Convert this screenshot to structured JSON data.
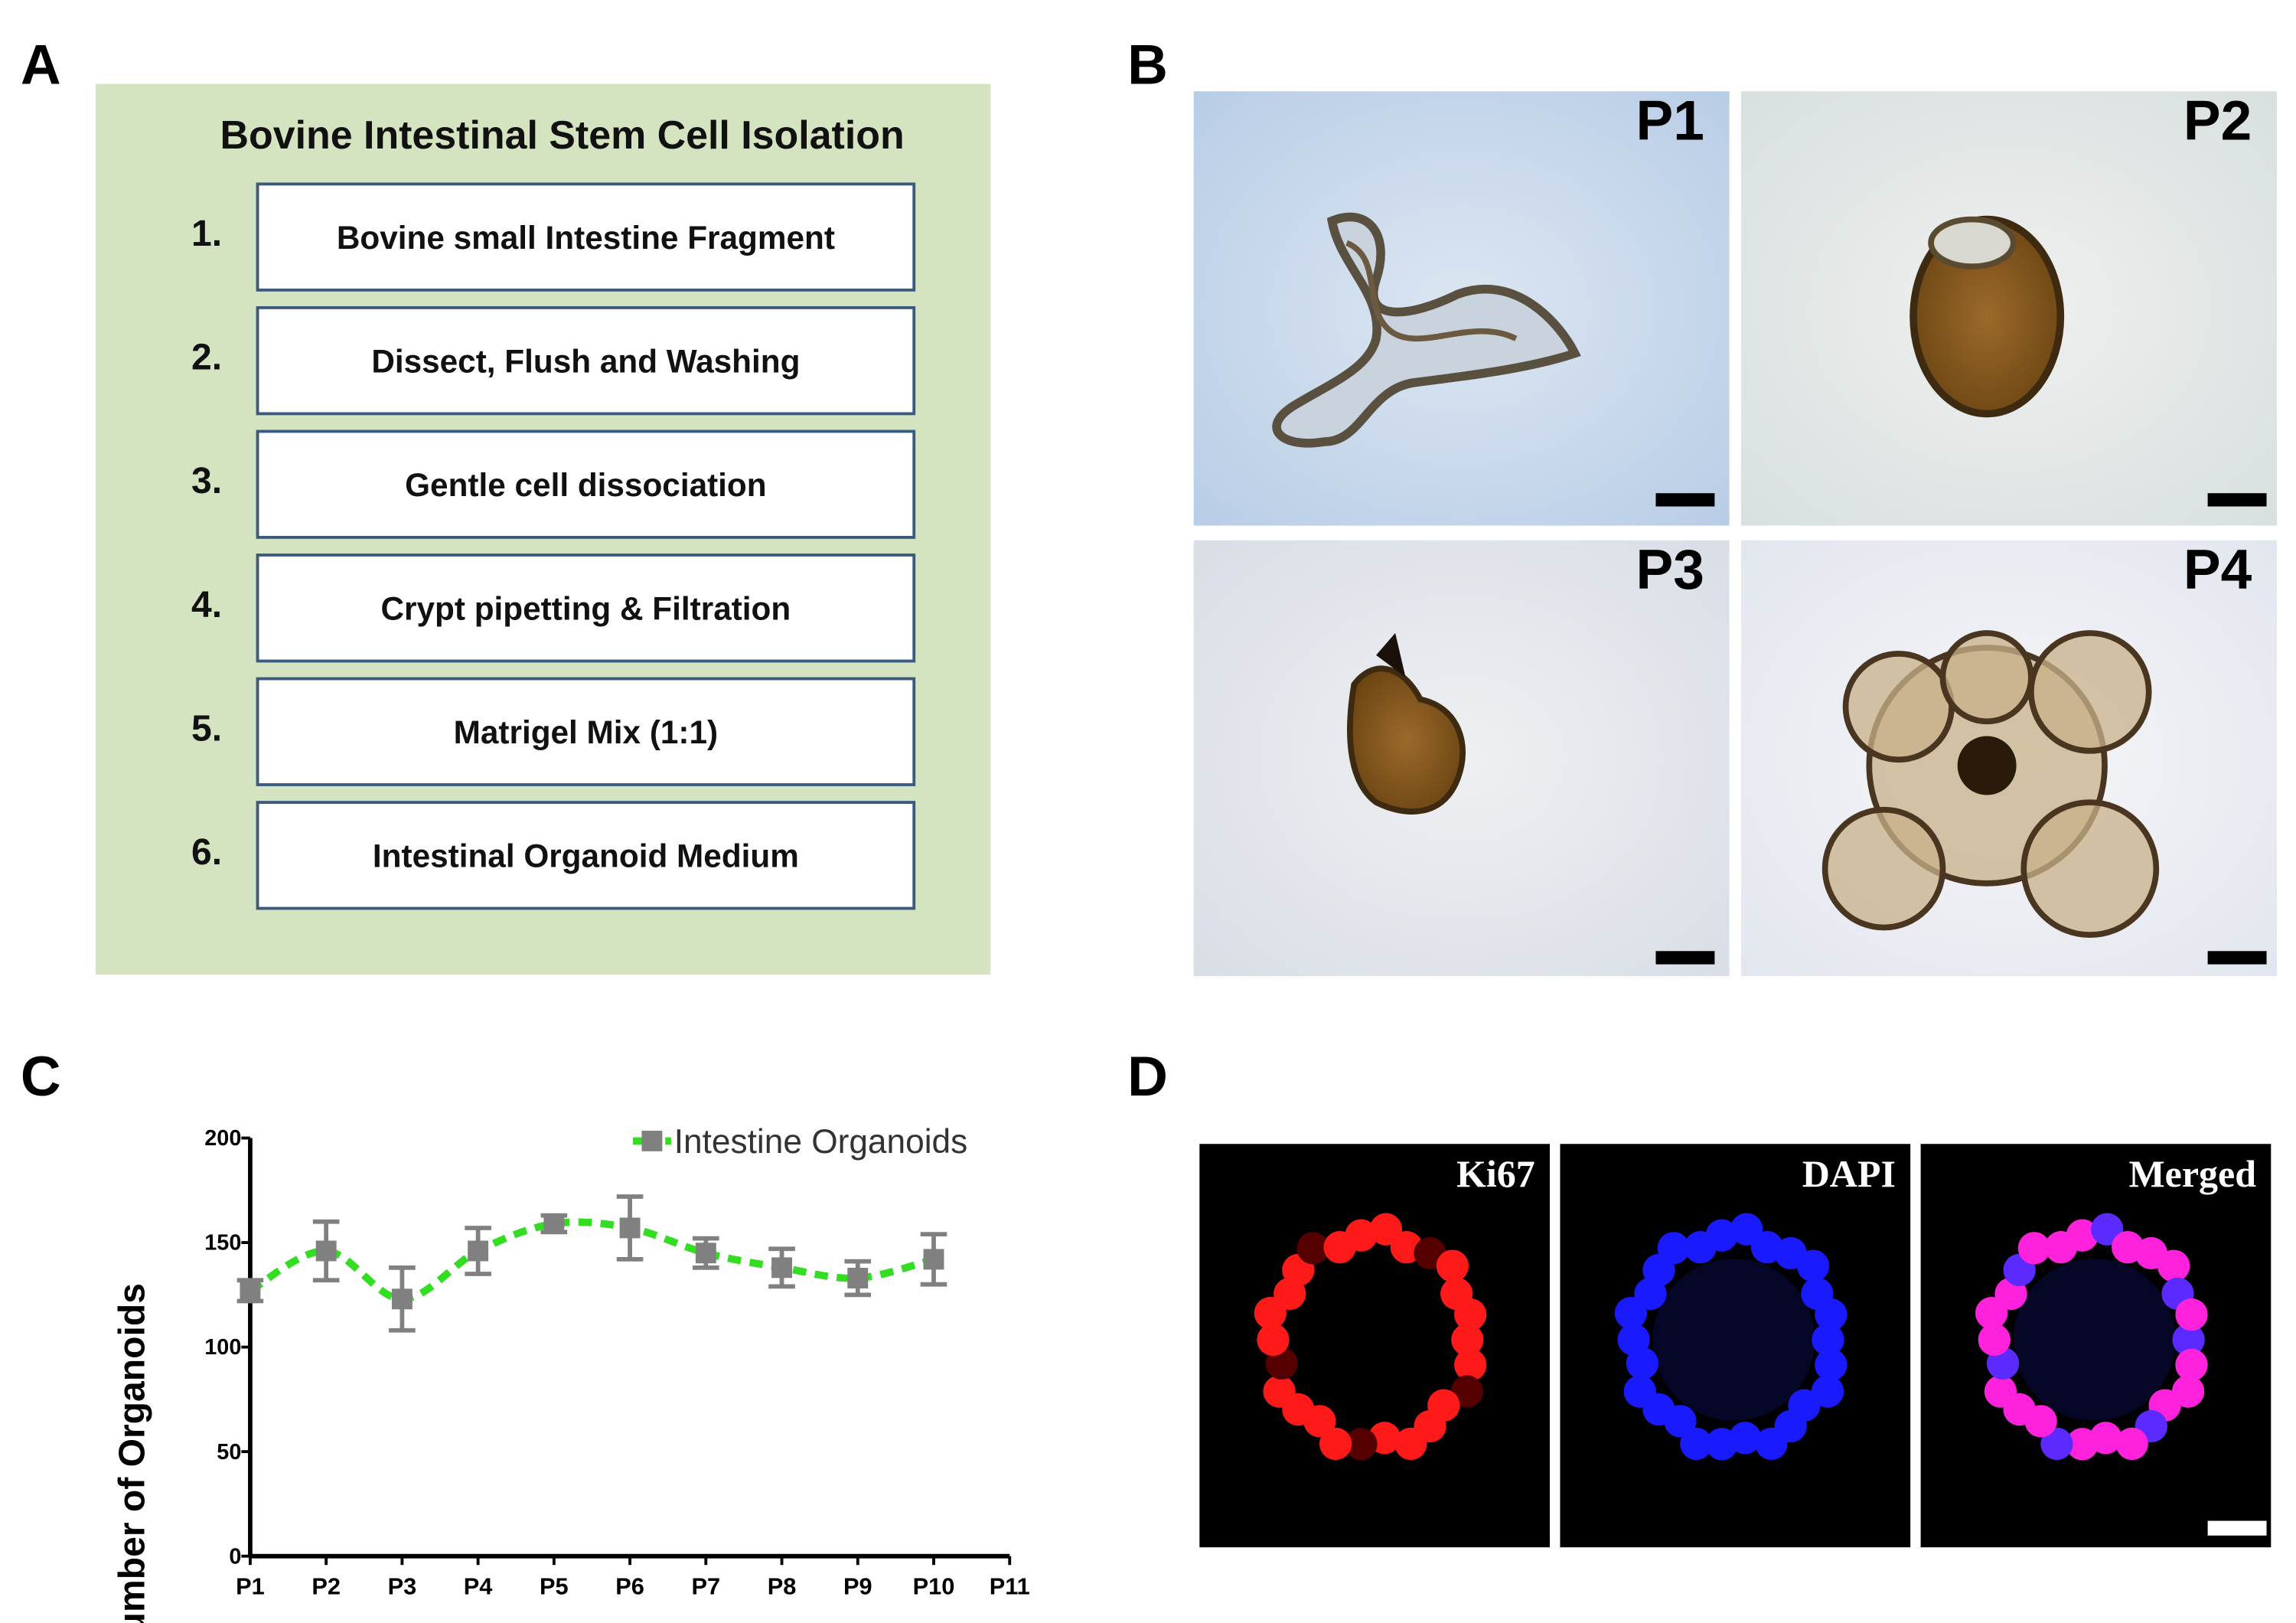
{
  "panel_labels": [
    "A",
    "B",
    "C",
    "D"
  ],
  "protocol": {
    "title": "Bovine Intestinal Stem Cell Isolation",
    "steps": [
      {
        "number": "1.",
        "label": "Bovine small Intestine Fragment"
      },
      {
        "number": "2.",
        "label": "Dissect, Flush and Washing"
      },
      {
        "number": "3.",
        "label": "Gentle cell dissociation"
      },
      {
        "number": "4.",
        "label": "Crypt pipetting & Filtration"
      },
      {
        "number": "5.",
        "label": "Matrigel Mix (1:1)"
      },
      {
        "number": "6.",
        "label": "Intestinal Organoid Medium"
      }
    ]
  },
  "micrographs": [
    "P1",
    "P2",
    "P3",
    "P4"
  ],
  "fluorescence": [
    "Ki67",
    "DAPI",
    "Merged"
  ],
  "chart_data": {
    "type": "line",
    "ylabel": "Number of Organoids",
    "categories": [
      "P1",
      "P2",
      "P3",
      "P4",
      "P5",
      "P6",
      "P7",
      "P8",
      "P9",
      "P10",
      "P11"
    ],
    "series": [
      {
        "name": "Intestine Organoids",
        "color": "#33dd22",
        "marker_color": "#808080",
        "values": [
          127,
          146,
          123,
          146,
          159,
          157,
          145,
          138,
          133,
          142,
          null
        ],
        "errors": [
          5,
          14,
          15,
          11,
          4,
          15,
          7,
          9,
          8,
          12,
          null
        ]
      }
    ],
    "ylim": [
      0,
      200
    ],
    "yticks": [
      0,
      50,
      100,
      150,
      200
    ],
    "legend": "upper right"
  }
}
